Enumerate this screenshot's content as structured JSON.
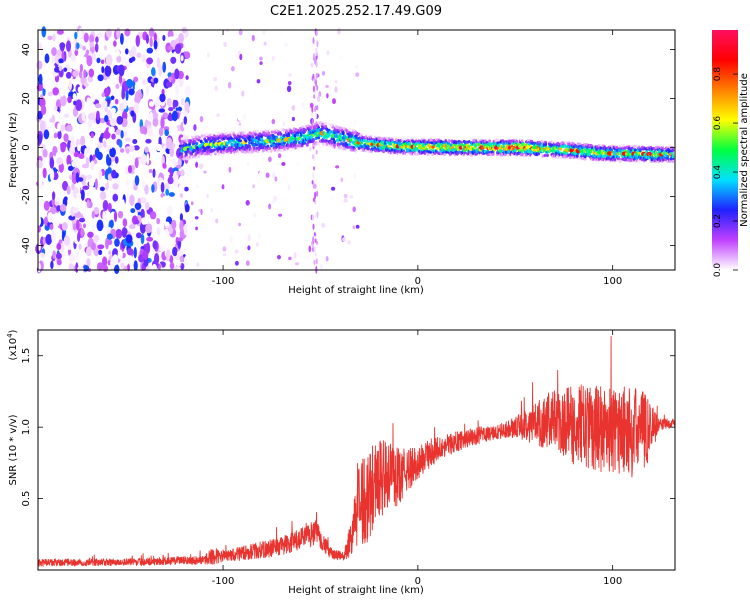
{
  "figure_title": "C2E1.2025.252.17.49.G09",
  "colorbar_label": "Normalized spectral amplitude",
  "chart_data": [
    {
      "type": "heatmap",
      "xlabel": "Height of straight line (km)",
      "ylabel": "Frequency (Hz)",
      "xlim": [
        -195,
        132
      ],
      "ylim": [
        -50,
        48
      ],
      "x_ticks": [
        -100,
        0,
        100
      ],
      "x_tick_labels": [
        "-100",
        "0",
        "100"
      ],
      "y_ticks": [
        -40,
        -20,
        0,
        20,
        40
      ],
      "y_tick_labels": [
        "-40",
        "-20",
        "0",
        "20",
        "40"
      ],
      "colorbar": {
        "range": [
          0,
          0.98
        ],
        "ticks": [
          0,
          0.2,
          0.4,
          0.6,
          0.8
        ],
        "tick_labels": [
          "0.0",
          "0.2",
          "0.4",
          "0.6",
          "0.8"
        ],
        "colors": [
          "#ffffff",
          "#c040ff",
          "#2020ff",
          "#00e0ff",
          "#00ff40",
          "#ffff00",
          "#ff8000",
          "#ff0000",
          "#ff1060"
        ]
      },
      "noise_region": {
        "x_range": [
          -195,
          -118
        ],
        "density": "high"
      },
      "sparse_region": {
        "x_range": [
          -118,
          -30
        ],
        "density": "low"
      },
      "ridge": {
        "x": [
          -122,
          -110,
          -100,
          -90,
          -80,
          -70,
          -60,
          -50,
          -45,
          -40,
          -35,
          -30,
          -20,
          -10,
          0,
          10,
          20,
          30,
          40,
          50,
          60,
          70,
          80,
          90,
          100,
          110,
          120,
          130
        ],
        "freq": [
          -1,
          1,
          1.5,
          2,
          2.5,
          3,
          4,
          6,
          5,
          4,
          3,
          2,
          1,
          0.5,
          0.3,
          0.2,
          0,
          0,
          0,
          0,
          -0.3,
          -0.8,
          -1.2,
          -2,
          -2.5,
          -2.5,
          -2.7,
          -2.8
        ],
        "peak_amplitude": [
          0.4,
          0.45,
          0.5,
          0.5,
          0.5,
          0.55,
          0.55,
          0.6,
          0.6,
          0.55,
          0.6,
          0.65,
          0.7,
          0.75,
          0.8,
          0.85,
          0.9,
          0.9,
          0.92,
          0.95,
          0.9,
          0.8,
          0.75,
          0.75,
          0.7,
          0.75,
          0.8,
          0.6
        ]
      }
    },
    {
      "type": "line",
      "series": [
        {
          "name": "SNR",
          "color": "#e8332f"
        }
      ],
      "xlabel": "Height of straight line (km)",
      "ylabel": "SNR (10 * v/v)",
      "multiplier_label": "(x10",
      "multiplier_exponent": "4",
      "multiplier_close": ")",
      "xlim": [
        -195,
        132
      ],
      "ylim": [
        0,
        16800
      ],
      "x_ticks": [
        -100,
        0,
        100
      ],
      "x_tick_labels": [
        "-100",
        "0",
        "100"
      ],
      "y_ticks": [
        5000,
        10000,
        15000
      ],
      "y_tick_labels": [
        "0.5",
        "1.0",
        "1.5"
      ],
      "envelope": {
        "x": [
          -195,
          -150,
          -110,
          -105,
          -100,
          -90,
          -80,
          -70,
          -60,
          -52,
          -45,
          -38,
          -34,
          -30,
          -25,
          -20,
          -15,
          -10,
          -5,
          0,
          10,
          20,
          30,
          40,
          50,
          60,
          70,
          80,
          90,
          100,
          110,
          118,
          124,
          132
        ],
        "mean": [
          500,
          550,
          700,
          1000,
          900,
          1200,
          1400,
          1700,
          2100,
          2700,
          1200,
          900,
          2500,
          4500,
          5500,
          6500,
          6500,
          6500,
          7000,
          7500,
          8500,
          9000,
          9400,
          9600,
          10000,
          10300,
          10400,
          10200,
          10000,
          9800,
          9700,
          9900,
          10200,
          10300
        ],
        "spread": [
          250,
          250,
          300,
          600,
          400,
          500,
          600,
          700,
          800,
          900,
          400,
          300,
          1500,
          3000,
          3500,
          3000,
          2500,
          2000,
          1500,
          1200,
          900,
          700,
          600,
          500,
          700,
          1500,
          2200,
          2800,
          3000,
          3100,
          3200,
          2500,
          400,
          300
        ]
      }
    }
  ]
}
